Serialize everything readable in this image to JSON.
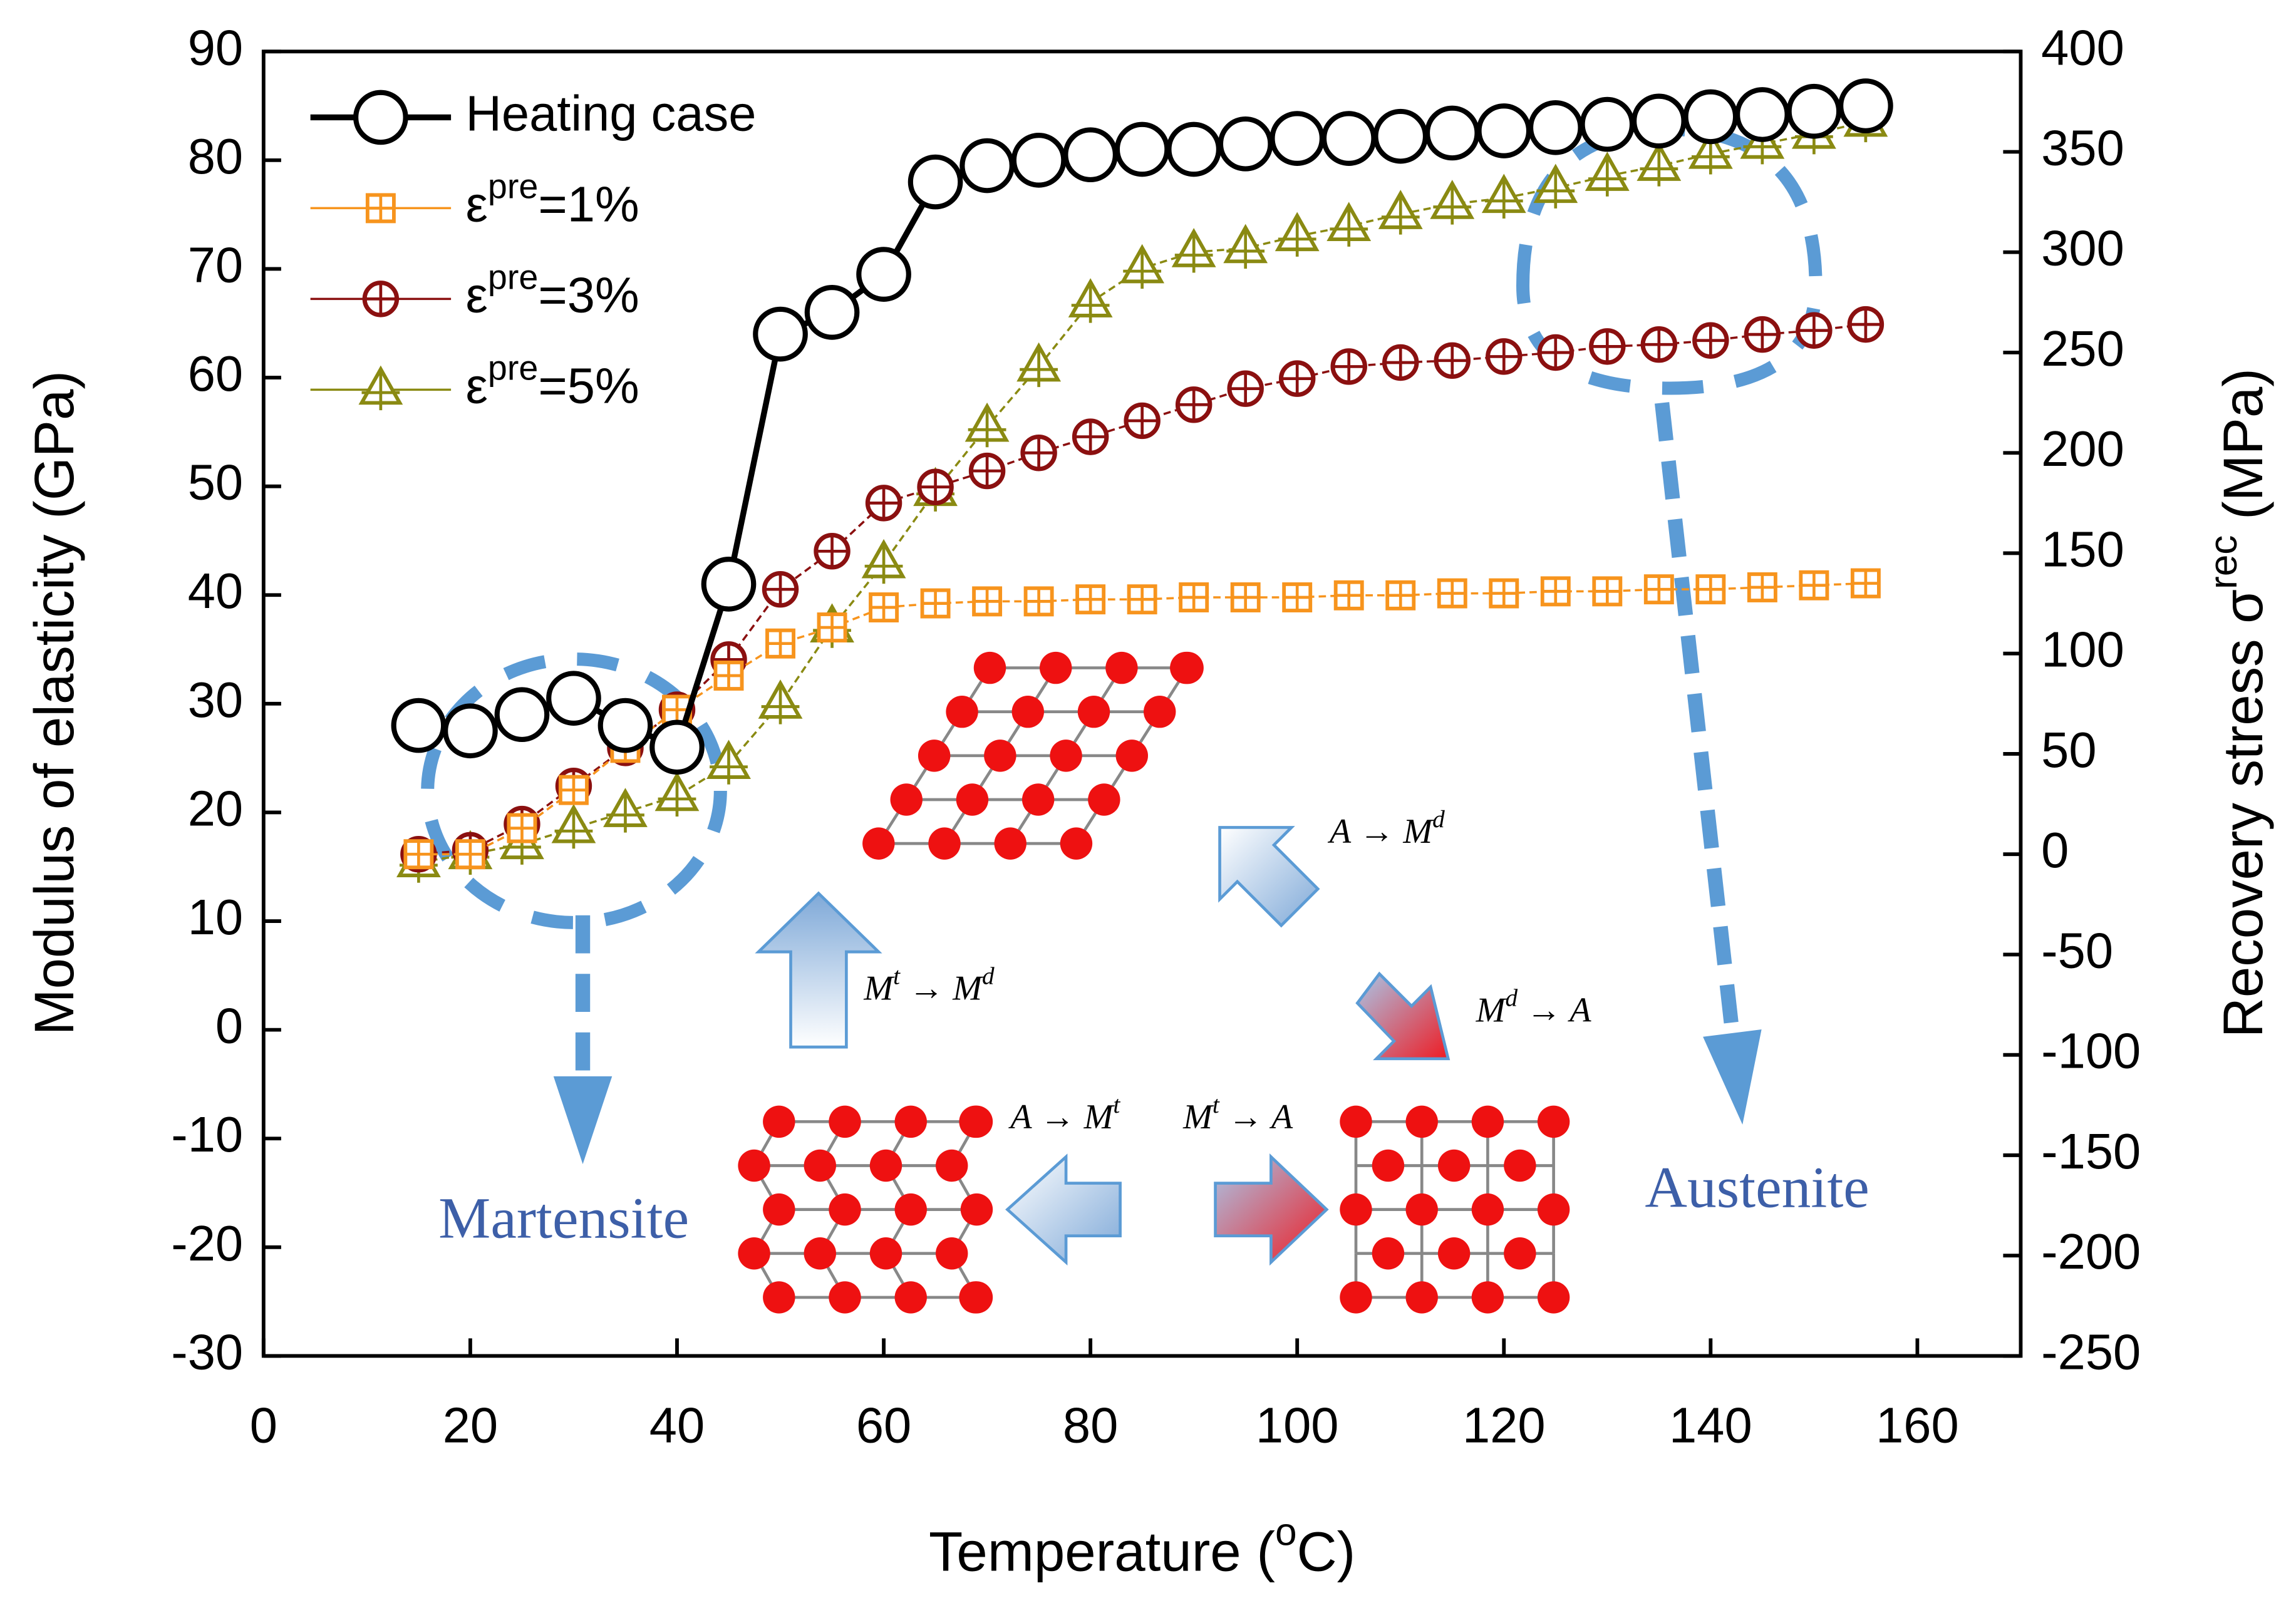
{
  "chart_data": {
    "type": "scatter",
    "x_label": [
      "Temperature (",
      "o",
      "C)"
    ],
    "y_label": "Modulus of elasticity (GPa)",
    "y2_label": [
      "Recovery stress σ",
      "rec",
      " (MPa)"
    ],
    "x": [
      15,
      20,
      25,
      30,
      35,
      40,
      45,
      50,
      55,
      60,
      65,
      70,
      75,
      80,
      85,
      90,
      95,
      100,
      105,
      110,
      115,
      120,
      125,
      130,
      135,
      140,
      145,
      150,
      155
    ],
    "xlim": [
      0,
      170
    ],
    "xticks": [
      0,
      20,
      40,
      60,
      80,
      100,
      120,
      140,
      160
    ],
    "ylim": [
      -30,
      90
    ],
    "yticks": [
      -30,
      -20,
      -10,
      0,
      10,
      20,
      30,
      40,
      50,
      60,
      70,
      80,
      90
    ],
    "y2lim": [
      -250,
      400
    ],
    "y2ticks": [
      -250,
      -200,
      -150,
      -100,
      -50,
      0,
      50,
      100,
      150,
      200,
      250,
      300,
      350,
      400
    ],
    "legend": "upper left",
    "series": [
      {
        "name": [
          "Heating case"
        ],
        "color": "#000000",
        "marker": "circle",
        "axis": "y",
        "values": [
          28,
          27.5,
          29,
          30.5,
          28,
          26,
          41,
          64,
          66,
          69.5,
          78,
          79.5,
          80,
          80.5,
          81,
          81,
          81.5,
          82,
          82,
          82.2,
          82.5,
          82.7,
          83,
          83.3,
          83.6,
          84,
          84.2,
          84.5,
          85
        ]
      },
      {
        "name": [
          "ε",
          "pre",
          "=1%"
        ],
        "color": "#f7941d",
        "marker": "square",
        "axis": "y2",
        "values": [
          0,
          0,
          13,
          32,
          53,
          72,
          89,
          105,
          113,
          123,
          125,
          126,
          126,
          127,
          127,
          128,
          128,
          128,
          129,
          129,
          130,
          130,
          131,
          131,
          132,
          132,
          133,
          134,
          135
        ]
      },
      {
        "name": [
          "ε",
          "pre",
          "=3%"
        ],
        "color": "#8b1010",
        "marker": "circle-plus",
        "axis": "y2",
        "values": [
          0,
          2,
          15,
          34,
          53,
          72,
          97,
          132,
          151,
          175,
          183,
          191,
          200,
          208,
          216,
          224,
          232,
          237,
          243,
          245,
          246,
          248,
          250,
          253,
          254,
          256,
          259,
          261,
          264
        ]
      },
      {
        "name": [
          "ε",
          "pre",
          "=5%"
        ],
        "color": "#8a8a12",
        "marker": "triangle",
        "axis": "y2",
        "values": [
          -4,
          0,
          5,
          13,
          21,
          29,
          45,
          75,
          113,
          145,
          181,
          213,
          243,
          275,
          292,
          300,
          302,
          308,
          313,
          319,
          324,
          327,
          332,
          338,
          343,
          349,
          354,
          359,
          365
        ]
      }
    ],
    "annotations": {
      "martensite": [
        "Martensite"
      ],
      "austenite": [
        "Austenite"
      ],
      "a_to_md": [
        "A → M",
        "d"
      ],
      "mt_to_md": [
        "M",
        "t",
        " → M",
        "d"
      ],
      "md_to_a": [
        "M",
        "d",
        " → A"
      ],
      "a_to_mt": [
        "A → M",
        "t"
      ],
      "mt_to_a": [
        "M",
        "t",
        " → A"
      ]
    }
  }
}
